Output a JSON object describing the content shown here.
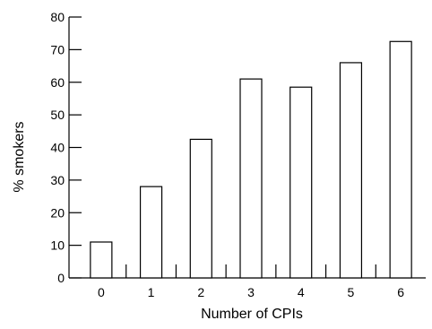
{
  "chart_data": {
    "type": "bar",
    "title": "",
    "xlabel": "Number of CPIs",
    "ylabel": "% smokers",
    "categories": [
      "0",
      "1",
      "2",
      "3",
      "4",
      "5",
      "6"
    ],
    "values": [
      11,
      28,
      42.5,
      61,
      58.5,
      66,
      72.5
    ],
    "ylim": [
      0,
      80
    ],
    "yticks": [
      0,
      10,
      20,
      30,
      40,
      50,
      60,
      70,
      80
    ],
    "grid": false,
    "bar_fill": "#ffffff",
    "bar_stroke": "#000000"
  }
}
